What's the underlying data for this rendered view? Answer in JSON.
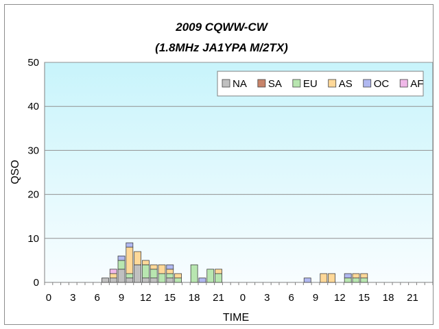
{
  "chart_data": {
    "type": "bar",
    "stacked": true,
    "title": "2009 CQWW-CW",
    "subtitle": "(1.8MHz  JA1YPA  M/2TX)",
    "xlabel": "TIME",
    "ylabel": "QSO",
    "ylim": [
      0,
      50
    ],
    "yticks": [
      "0",
      "10",
      "20",
      "30",
      "40",
      "50"
    ],
    "xtick_labels": [
      "0",
      "3",
      "6",
      "9",
      "12",
      "15",
      "18",
      "21",
      "0",
      "3",
      "6",
      "9",
      "12",
      "15",
      "18",
      "21"
    ],
    "grid": true,
    "legend_position": "top-right",
    "categories": [
      "0",
      "1",
      "2",
      "3",
      "4",
      "5",
      "6",
      "7",
      "8",
      "9",
      "10",
      "11",
      "12",
      "13",
      "14",
      "15",
      "16",
      "17",
      "18",
      "19",
      "20",
      "21",
      "22",
      "23",
      "0",
      "1",
      "2",
      "3",
      "4",
      "5",
      "6",
      "7",
      "8",
      "9",
      "10",
      "11",
      "12",
      "13",
      "14",
      "15",
      "16",
      "17",
      "18",
      "19",
      "20",
      "21",
      "22",
      "23"
    ],
    "series": [
      {
        "name": "NA",
        "color": "#c0c0c0",
        "values": [
          0,
          0,
          0,
          0,
          0,
          0,
          0,
          1,
          1,
          3,
          1,
          4,
          1,
          1,
          0,
          1,
          0,
          0,
          0,
          0,
          0,
          0,
          0,
          0,
          0,
          0,
          0,
          0,
          0,
          0,
          0,
          0,
          0,
          0,
          0,
          0,
          0,
          0,
          0,
          0,
          0,
          0,
          0,
          0,
          0,
          0,
          0,
          0
        ]
      },
      {
        "name": "SA",
        "color": "#c8846a",
        "values": [
          0,
          0,
          0,
          0,
          0,
          0,
          0,
          0,
          0,
          0,
          0,
          0,
          0,
          0,
          0,
          0,
          0,
          0,
          0,
          0,
          0,
          0,
          0,
          0,
          0,
          0,
          0,
          0,
          0,
          0,
          0,
          0,
          0,
          0,
          0,
          0,
          0,
          0,
          0,
          0,
          0,
          0,
          0,
          0,
          0,
          0,
          0,
          0
        ]
      },
      {
        "name": "EU",
        "color": "#b8e6b0",
        "values": [
          0,
          0,
          0,
          0,
          0,
          0,
          0,
          0,
          0,
          2,
          1,
          0,
          3,
          2,
          2,
          1,
          1,
          0,
          4,
          0,
          3,
          2,
          0,
          0,
          0,
          0,
          0,
          0,
          0,
          0,
          0,
          0,
          0,
          0,
          0,
          0,
          0,
          1,
          1,
          1,
          0,
          0,
          0,
          0,
          0,
          0,
          0,
          0
        ]
      },
      {
        "name": "AS",
        "color": "#ffd898",
        "values": [
          0,
          0,
          0,
          0,
          0,
          0,
          0,
          0,
          1,
          0,
          6,
          3,
          1,
          1,
          2,
          1,
          1,
          0,
          0,
          0,
          0,
          1,
          0,
          0,
          0,
          0,
          0,
          0,
          0,
          0,
          0,
          0,
          0,
          0,
          2,
          2,
          0,
          0,
          1,
          1,
          0,
          0,
          0,
          0,
          0,
          0,
          0,
          0
        ]
      },
      {
        "name": "OC",
        "color": "#b0b8f0",
        "values": [
          0,
          0,
          0,
          0,
          0,
          0,
          0,
          0,
          0,
          1,
          1,
          0,
          0,
          0,
          0,
          1,
          0,
          0,
          0,
          1,
          0,
          0,
          0,
          0,
          0,
          0,
          0,
          0,
          0,
          0,
          0,
          0,
          1,
          0,
          0,
          0,
          0,
          1,
          0,
          0,
          0,
          0,
          0,
          0,
          0,
          0,
          0,
          0
        ]
      },
      {
        "name": "AF",
        "color": "#f0b8e8",
        "values": [
          0,
          0,
          0,
          0,
          0,
          0,
          0,
          0,
          1,
          0,
          0,
          0,
          0,
          0,
          0,
          0,
          0,
          0,
          0,
          0,
          0,
          0,
          0,
          0,
          0,
          0,
          0,
          0,
          0,
          0,
          0,
          0,
          0,
          0,
          0,
          0,
          0,
          0,
          0,
          0,
          0,
          0,
          0,
          0,
          0,
          0,
          0,
          0
        ]
      }
    ]
  }
}
